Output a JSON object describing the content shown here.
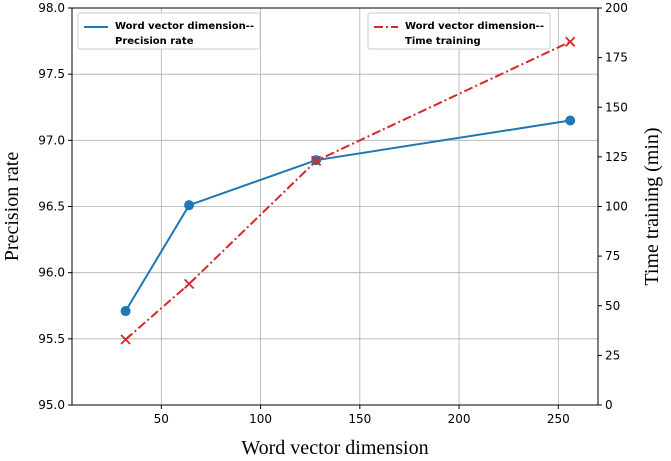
{
  "chart_data": {
    "type": "line",
    "xlabel": "Word vector dimension",
    "ylabel_left": "Precision rate",
    "ylabel_right": "Time training (min)",
    "xlim": [
      5,
      270
    ],
    "xticks": [
      50,
      100,
      150,
      200,
      250
    ],
    "ylim_left": [
      95.0,
      98.0
    ],
    "yticks_left": [
      "95.0",
      "95.5",
      "96.0",
      "96.5",
      "97.0",
      "97.5",
      "98.0"
    ],
    "ylim_right": [
      0,
      200
    ],
    "yticks_right": [
      "0",
      "25",
      "50",
      "75",
      "100",
      "125",
      "150",
      "175",
      "200"
    ],
    "grid": true,
    "series": [
      {
        "name_line1": "Word vector dimension--",
        "name_line2": "Precision rate",
        "axis": "left",
        "color": "#1f77b4",
        "x": [
          32,
          64,
          128,
          256
        ],
        "y": [
          95.71,
          96.51,
          96.85,
          97.15
        ],
        "legend_position": "upper-left"
      },
      {
        "name_line1": "Word vector dimension--",
        "name_line2": "Time training",
        "axis": "right",
        "color": "#d62728",
        "x": [
          32,
          64,
          128,
          256
        ],
        "y": [
          33,
          61,
          123,
          183
        ],
        "legend_position": "upper-right"
      }
    ]
  }
}
